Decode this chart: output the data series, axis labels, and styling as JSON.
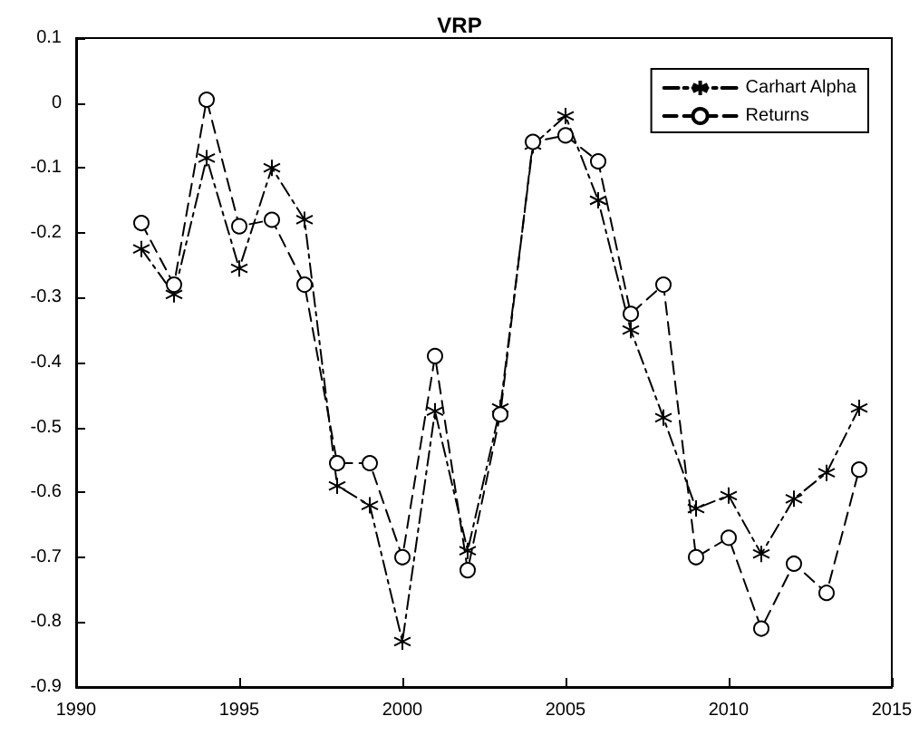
{
  "chart_data": {
    "type": "line",
    "title": "VRP",
    "x": [
      1992,
      1993,
      1994,
      1995,
      1996,
      1997,
      1998,
      1999,
      2000,
      2001,
      2002,
      2003,
      2004,
      2005,
      2006,
      2007,
      2008,
      2009,
      2010,
      2011,
      2012,
      2013,
      2014
    ],
    "series": [
      {
        "name": "Carhart Alpha",
        "color": "#000000",
        "marker": "cross",
        "line_style": "dashdot",
        "values": [
          -0.225,
          -0.295,
          -0.085,
          -0.255,
          -0.1,
          -0.18,
          -0.59,
          -0.62,
          -0.83,
          -0.475,
          -0.69,
          -0.47,
          -0.065,
          -0.02,
          -0.15,
          -0.35,
          -0.485,
          -0.625,
          -0.605,
          -0.695,
          -0.61,
          -0.57,
          -0.47
        ]
      },
      {
        "name": "Returns",
        "color": "#000000",
        "marker": "circle",
        "line_style": "dashed",
        "values": [
          -0.185,
          -0.28,
          0.005,
          -0.19,
          -0.18,
          -0.28,
          -0.555,
          -0.555,
          -0.7,
          -0.39,
          -0.72,
          -0.48,
          -0.06,
          -0.05,
          -0.09,
          -0.325,
          -0.28,
          -0.7,
          -0.67,
          -0.81,
          -0.71,
          -0.755,
          -0.565
        ]
      }
    ],
    "xlim": [
      1990,
      2015
    ],
    "xticks": [
      1990,
      1995,
      2000,
      2005,
      2010,
      2015
    ],
    "ylim": [
      -0.9,
      0.1
    ],
    "yticks": [
      -0.9,
      -0.8,
      -0.7,
      -0.6,
      -0.5,
      -0.4,
      -0.3,
      -0.2,
      -0.1,
      0,
      0.1
    ],
    "grid": false,
    "legend": "top right"
  }
}
